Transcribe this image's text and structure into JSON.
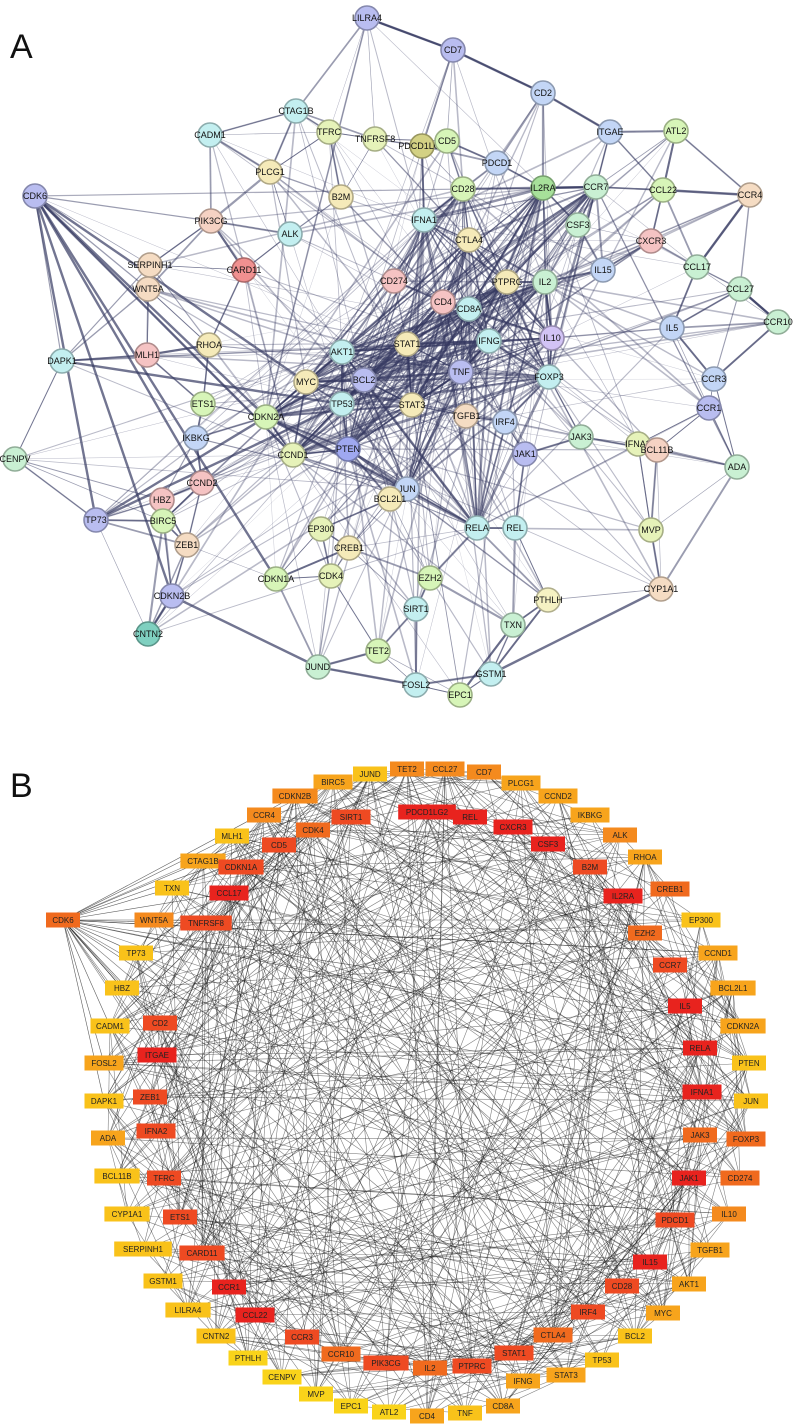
{
  "panels": [
    {
      "label": "A"
    },
    {
      "label": "B"
    }
  ],
  "network_a": {
    "nodes": [
      {
        "id": "LILRA4",
        "color": "#b9bdf0"
      },
      {
        "id": "CD7",
        "color": "#b9bdf0"
      },
      {
        "id": "CD2",
        "color": "#c3d6f6"
      },
      {
        "id": "CTAG1B",
        "color": "#c3eff0"
      },
      {
        "id": "TFRC",
        "color": "#e6f2b9"
      },
      {
        "id": "TNFRSF8",
        "color": "#e6f2b9"
      },
      {
        "id": "PDCD1LG2",
        "color": "#d3d184"
      },
      {
        "id": "CD5",
        "color": "#d7f5b8"
      },
      {
        "id": "ITGAE",
        "color": "#c3d6f6"
      },
      {
        "id": "ATL2",
        "color": "#d7f5b8"
      },
      {
        "id": "CADM1",
        "color": "#c3eff0"
      },
      {
        "id": "PDCD1",
        "color": "#c3d6f6"
      },
      {
        "id": "PLCG1",
        "color": "#f5eab9"
      },
      {
        "id": "CD28",
        "color": "#d7f5b8"
      },
      {
        "id": "IL2RA",
        "color": "#a7e09a"
      },
      {
        "id": "CCR7",
        "color": "#c9f0d3"
      },
      {
        "id": "CCL22",
        "color": "#d7f5b8"
      },
      {
        "id": "CCR4",
        "color": "#f5dcc3"
      },
      {
        "id": "CDK6",
        "color": "#b9bdf0"
      },
      {
        "id": "B2M",
        "color": "#f5eab9"
      },
      {
        "id": "IFNA1",
        "color": "#c3eff0"
      },
      {
        "id": "CSF3",
        "color": "#c9f0d3"
      },
      {
        "id": "PIK3CG",
        "color": "#f5d2c3"
      },
      {
        "id": "ALK",
        "color": "#c3eff0"
      },
      {
        "id": "CTLA4",
        "color": "#f5eab9"
      },
      {
        "id": "CXCR3",
        "color": "#f5c3c3"
      },
      {
        "id": "SERPINH1",
        "color": "#f5dcc3"
      },
      {
        "id": "CARD11",
        "color": "#f09090"
      },
      {
        "id": "IL15",
        "color": "#c3d6f6"
      },
      {
        "id": "CCL17",
        "color": "#c9f0d3"
      },
      {
        "id": "WNT5A",
        "color": "#f5dcc3"
      },
      {
        "id": "CD274",
        "color": "#f5c3c3"
      },
      {
        "id": "PTPRC",
        "color": "#f5eab9"
      },
      {
        "id": "IL2",
        "color": "#c9f0d3"
      },
      {
        "id": "CCL27",
        "color": "#c9f0d3"
      },
      {
        "id": "CD4",
        "color": "#f5c3c3"
      },
      {
        "id": "CD8A",
        "color": "#c3eff0"
      },
      {
        "id": "IL5",
        "color": "#c3d6f6"
      },
      {
        "id": "CCR10",
        "color": "#c9f0d3"
      },
      {
        "id": "DAPK1",
        "color": "#c3eff0"
      },
      {
        "id": "MLH1",
        "color": "#f5c3c3"
      },
      {
        "id": "RHOA",
        "color": "#f5eab9"
      },
      {
        "id": "AKT1",
        "color": "#c3eff0"
      },
      {
        "id": "STAT1",
        "color": "#f5eab9"
      },
      {
        "id": "IFNG",
        "color": "#c3eff0"
      },
      {
        "id": "IL10",
        "color": "#d2c3f5"
      },
      {
        "id": "MYC",
        "color": "#f5eab9"
      },
      {
        "id": "BCL2",
        "color": "#b9bdf0"
      },
      {
        "id": "TNF",
        "color": "#b9bdf0"
      },
      {
        "id": "FOXP3",
        "color": "#c3eff0"
      },
      {
        "id": "CCR3",
        "color": "#c3d6f6"
      },
      {
        "id": "ETS1",
        "color": "#d7f5b8"
      },
      {
        "id": "TP53",
        "color": "#c3eff0"
      },
      {
        "id": "STAT3",
        "color": "#f5eab9"
      },
      {
        "id": "CCR1",
        "color": "#b9bdf0"
      },
      {
        "id": "CDKN2A",
        "color": "#d7f5b8"
      },
      {
        "id": "TGFB1",
        "color": "#f5dcc3"
      },
      {
        "id": "IRF4",
        "color": "#c3d6f6"
      },
      {
        "id": "IKBKG",
        "color": "#c3d6f6"
      },
      {
        "id": "PTEN",
        "color": "#9fa8f0"
      },
      {
        "id": "JAK3",
        "color": "#c9f0d3"
      },
      {
        "id": "IFNA2",
        "color": "#e6f2b9"
      },
      {
        "id": "BCL11B",
        "color": "#f5d2c3"
      },
      {
        "id": "ADA",
        "color": "#c9f0d3"
      },
      {
        "id": "CENPV",
        "color": "#c9f0d3"
      },
      {
        "id": "CCND1",
        "color": "#e6f2b9"
      },
      {
        "id": "JAK1",
        "color": "#b9bdf0"
      },
      {
        "id": "CCND2",
        "color": "#f5c3c3"
      },
      {
        "id": "JUN",
        "color": "#c3d6f6"
      },
      {
        "id": "HBZ",
        "color": "#f5c3c3"
      },
      {
        "id": "BCL2L1",
        "color": "#f5eab9"
      },
      {
        "id": "TP73",
        "color": "#b9bdf0"
      },
      {
        "id": "BIRC5",
        "color": "#d7f5b8"
      },
      {
        "id": "EP300",
        "color": "#e6f2b9"
      },
      {
        "id": "CREB1",
        "color": "#f5eab9"
      },
      {
        "id": "RELA",
        "color": "#c3eff0"
      },
      {
        "id": "REL",
        "color": "#c3eff0"
      },
      {
        "id": "MVP",
        "color": "#e6f2b9"
      },
      {
        "id": "ZEB1",
        "color": "#f5dcc3"
      },
      {
        "id": "CDKN1A",
        "color": "#d7f5b8"
      },
      {
        "id": "CDK4",
        "color": "#e6f2b9"
      },
      {
        "id": "EZH2",
        "color": "#d7f5b8"
      },
      {
        "id": "CYP1A1",
        "color": "#f5dcc3"
      },
      {
        "id": "PTHLH",
        "color": "#f5f2c3"
      },
      {
        "id": "CDKN2B",
        "color": "#b9bdf0"
      },
      {
        "id": "SIRT1",
        "color": "#c3eff0"
      },
      {
        "id": "CNTN2",
        "color": "#7fd0c0"
      },
      {
        "id": "TXN",
        "color": "#c9f0d3"
      },
      {
        "id": "TET2",
        "color": "#d7f5b8"
      },
      {
        "id": "JUND",
        "color": "#c9f0d3"
      },
      {
        "id": "GSTM1",
        "color": "#c3eff0"
      },
      {
        "id": "EPC1",
        "color": "#d7f5b8"
      },
      {
        "id": "FOSL2",
        "color": "#c3eff0"
      }
    ]
  },
  "network_b": {
    "nodes": [
      {
        "id": "BIRC5",
        "color": "#f7a41c"
      },
      {
        "id": "JUND",
        "color": "#f9c21a"
      },
      {
        "id": "TET2",
        "color": "#f48a1e"
      },
      {
        "id": "CCL27",
        "color": "#f48a1e"
      },
      {
        "id": "CD7",
        "color": "#f48a1e"
      },
      {
        "id": "PLCG1",
        "color": "#f7a41c"
      },
      {
        "id": "CCND2",
        "color": "#f7a41c"
      },
      {
        "id": "CDKN2B",
        "color": "#f48a1e"
      },
      {
        "id": "SIRT1",
        "color": "#ee4a22"
      },
      {
        "id": "PDCD1LG2",
        "color": "#e8231e"
      },
      {
        "id": "REL",
        "color": "#e8231e"
      },
      {
        "id": "CXCR3",
        "color": "#e8231e"
      },
      {
        "id": "IKBKG",
        "color": "#f7a41c"
      },
      {
        "id": "CCR4",
        "color": "#f48a1e"
      },
      {
        "id": "CDK4",
        "color": "#f06a1e"
      },
      {
        "id": "CSF3",
        "color": "#e8231e"
      },
      {
        "id": "ALK",
        "color": "#f48a1e"
      },
      {
        "id": "MLH1",
        "color": "#f9c21a"
      },
      {
        "id": "CD5",
        "color": "#ee4a22"
      },
      {
        "id": "B2M",
        "color": "#ee4a22"
      },
      {
        "id": "RHOA",
        "color": "#f7a41c"
      },
      {
        "id": "CTAG1B",
        "color": "#f7a41c"
      },
      {
        "id": "CDKN1A",
        "color": "#ee4a22"
      },
      {
        "id": "CREB1",
        "color": "#f06a1e"
      },
      {
        "id": "TXN",
        "color": "#f9c21a"
      },
      {
        "id": "CCL17",
        "color": "#e8231e"
      },
      {
        "id": "IL2RA",
        "color": "#e8231e"
      },
      {
        "id": "CDK6",
        "color": "#f06a1e"
      },
      {
        "id": "WNT5A",
        "color": "#f48a1e"
      },
      {
        "id": "TNFRSF8",
        "color": "#ee4a22"
      },
      {
        "id": "EP300",
        "color": "#f9c21a"
      },
      {
        "id": "EZH2",
        "color": "#f06a1e"
      },
      {
        "id": "TP73",
        "color": "#f9c21a"
      },
      {
        "id": "CCND1",
        "color": "#f7a41c"
      },
      {
        "id": "CCR7",
        "color": "#ee4a22"
      },
      {
        "id": "HBZ",
        "color": "#f9c21a"
      },
      {
        "id": "BCL2L1",
        "color": "#f7a41c"
      },
      {
        "id": "CD2",
        "color": "#ee4a22"
      },
      {
        "id": "IL5",
        "color": "#e8231e"
      },
      {
        "id": "CADM1",
        "color": "#f9c21a"
      },
      {
        "id": "CDKN2A",
        "color": "#f7a41c"
      },
      {
        "id": "ITGAE",
        "color": "#e8231e"
      },
      {
        "id": "FOSL2",
        "color": "#f7a41c"
      },
      {
        "id": "RELA",
        "color": "#e8231e"
      },
      {
        "id": "PTEN",
        "color": "#f9c21a"
      },
      {
        "id": "ZEB1",
        "color": "#ee4a22"
      },
      {
        "id": "DAPK1",
        "color": "#f9c21a"
      },
      {
        "id": "IFNA1",
        "color": "#e8231e"
      },
      {
        "id": "JUN",
        "color": "#f9c21a"
      },
      {
        "id": "IFNA2",
        "color": "#ee4a22"
      },
      {
        "id": "ADA",
        "color": "#f7a41c"
      },
      {
        "id": "JAK3",
        "color": "#f06a1e"
      },
      {
        "id": "FOXP3",
        "color": "#f06a1e"
      },
      {
        "id": "TFRC",
        "color": "#ee4a22"
      },
      {
        "id": "BCL11B",
        "color": "#f9c21a"
      },
      {
        "id": "JAK1",
        "color": "#e8231e"
      },
      {
        "id": "CD274",
        "color": "#f06a1e"
      },
      {
        "id": "ETS1",
        "color": "#ee4a22"
      },
      {
        "id": "CYP1A1",
        "color": "#f9c21a"
      },
      {
        "id": "PDCD1",
        "color": "#ee4a22"
      },
      {
        "id": "IL10",
        "color": "#f48a1e"
      },
      {
        "id": "CARD11",
        "color": "#ee4a22"
      },
      {
        "id": "SERPINH1",
        "color": "#f9c21a"
      },
      {
        "id": "IL15",
        "color": "#e8231e"
      },
      {
        "id": "TGFB1",
        "color": "#f7a41c"
      },
      {
        "id": "CCR1",
        "color": "#e8231e"
      },
      {
        "id": "GSTM1",
        "color": "#f9c21a"
      },
      {
        "id": "CD28",
        "color": "#ee4a22"
      },
      {
        "id": "AKT1",
        "color": "#f7a41c"
      },
      {
        "id": "CCL22",
        "color": "#e8231e"
      },
      {
        "id": "LILRA4",
        "color": "#f9c21a"
      },
      {
        "id": "IRF4",
        "color": "#ee4a22"
      },
      {
        "id": "MYC",
        "color": "#f7a41c"
      },
      {
        "id": "CCR3",
        "color": "#ee4a22"
      },
      {
        "id": "CNTN2",
        "color": "#f9c21a"
      },
      {
        "id": "CTLA4",
        "color": "#f06a1e"
      },
      {
        "id": "BCL2",
        "color": "#f9c21a"
      },
      {
        "id": "CCR10",
        "color": "#f06a1e"
      },
      {
        "id": "PTHLH",
        "color": "#f9d31a"
      },
      {
        "id": "PIK3CG",
        "color": "#ee4a22"
      },
      {
        "id": "STAT1",
        "color": "#ee4a22"
      },
      {
        "id": "TP53",
        "color": "#f9c21a"
      },
      {
        "id": "IL2",
        "color": "#f06a1e"
      },
      {
        "id": "PTPRC",
        "color": "#ee4a22"
      },
      {
        "id": "CENPV",
        "color": "#f9d31a"
      },
      {
        "id": "STAT3",
        "color": "#f7a41c"
      },
      {
        "id": "IFNG",
        "color": "#f7a41c"
      },
      {
        "id": "MVP",
        "color": "#f9d31a"
      },
      {
        "id": "EPC1",
        "color": "#f9d31a"
      },
      {
        "id": "ATL2",
        "color": "#f9d31a"
      },
      {
        "id": "CD4",
        "color": "#f7a41c"
      },
      {
        "id": "TNF",
        "color": "#f9c21a"
      },
      {
        "id": "CD8A",
        "color": "#f7a41c"
      }
    ]
  }
}
